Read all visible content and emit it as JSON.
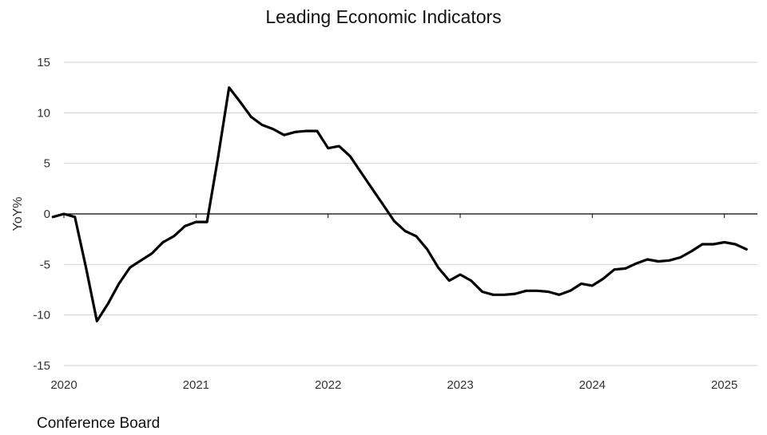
{
  "chart_data": {
    "type": "line",
    "title": "Leading Economic Indicators",
    "xlabel": "",
    "ylabel": "YoY%",
    "source": "Conference Board",
    "ylim": [
      -15,
      15
    ],
    "xlim": [
      2020.0,
      2025.25
    ],
    "yticks": [
      15,
      10,
      5,
      0,
      -5,
      -10,
      -15
    ],
    "ytick_labels": [
      "15",
      "10",
      "5",
      "0",
      "-5",
      "-10",
      "-15"
    ],
    "xticks": [
      2020,
      2021,
      2022,
      2023,
      2024,
      2025
    ],
    "xtick_labels": [
      "2020",
      "2021",
      "2022",
      "2023",
      "2024",
      "2025"
    ],
    "grid": true,
    "zero_line": true,
    "colors": {
      "line": "#000000",
      "grid": "#d0d0d0",
      "zero": "#000000"
    },
    "series": [
      {
        "x": [
          2019.917,
          2020.0,
          2020.083,
          2020.167,
          2020.25,
          2020.333,
          2020.417,
          2020.5,
          2020.583,
          2020.667,
          2020.75,
          2020.833,
          2020.917,
          2021.0,
          2021.083,
          2021.167,
          2021.25,
          2021.333,
          2021.417,
          2021.5,
          2021.583,
          2021.667,
          2021.75,
          2021.833,
          2021.917,
          2022.0,
          2022.083,
          2022.167,
          2022.25,
          2022.333,
          2022.417,
          2022.5,
          2022.583,
          2022.667,
          2022.75,
          2022.833,
          2022.917,
          2023.0,
          2023.083,
          2023.167,
          2023.25,
          2023.333,
          2023.417,
          2023.5,
          2023.583,
          2023.667,
          2023.75,
          2023.833,
          2023.917,
          2024.0,
          2024.083,
          2024.167,
          2024.25,
          2024.333,
          2024.417,
          2024.5,
          2024.583,
          2024.667,
          2024.75,
          2024.833,
          2024.917,
          2025.0,
          2025.083,
          2025.167
        ],
        "values": [
          -0.3,
          0.0,
          -0.3,
          -5.3,
          -10.6,
          -8.9,
          -6.9,
          -5.3,
          -4.6,
          -3.9,
          -2.8,
          -2.2,
          -1.2,
          -0.8,
          -0.8,
          5.6,
          12.5,
          11.1,
          9.6,
          8.8,
          8.4,
          7.8,
          8.1,
          8.2,
          8.2,
          6.5,
          6.7,
          5.7,
          4.1,
          2.5,
          0.9,
          -0.7,
          -1.7,
          -2.2,
          -3.5,
          -5.3,
          -6.6,
          -6.0,
          -6.6,
          -7.7,
          -8.0,
          -8.0,
          -7.9,
          -7.6,
          -7.6,
          -7.7,
          -8.0,
          -7.6,
          -6.9,
          -7.1,
          -6.4,
          -5.5,
          -5.4,
          -4.9,
          -4.5,
          -4.7,
          -4.6,
          -4.3,
          -3.7,
          -3.0,
          -3.0,
          -2.8,
          -3.0,
          -3.5
        ]
      }
    ]
  }
}
